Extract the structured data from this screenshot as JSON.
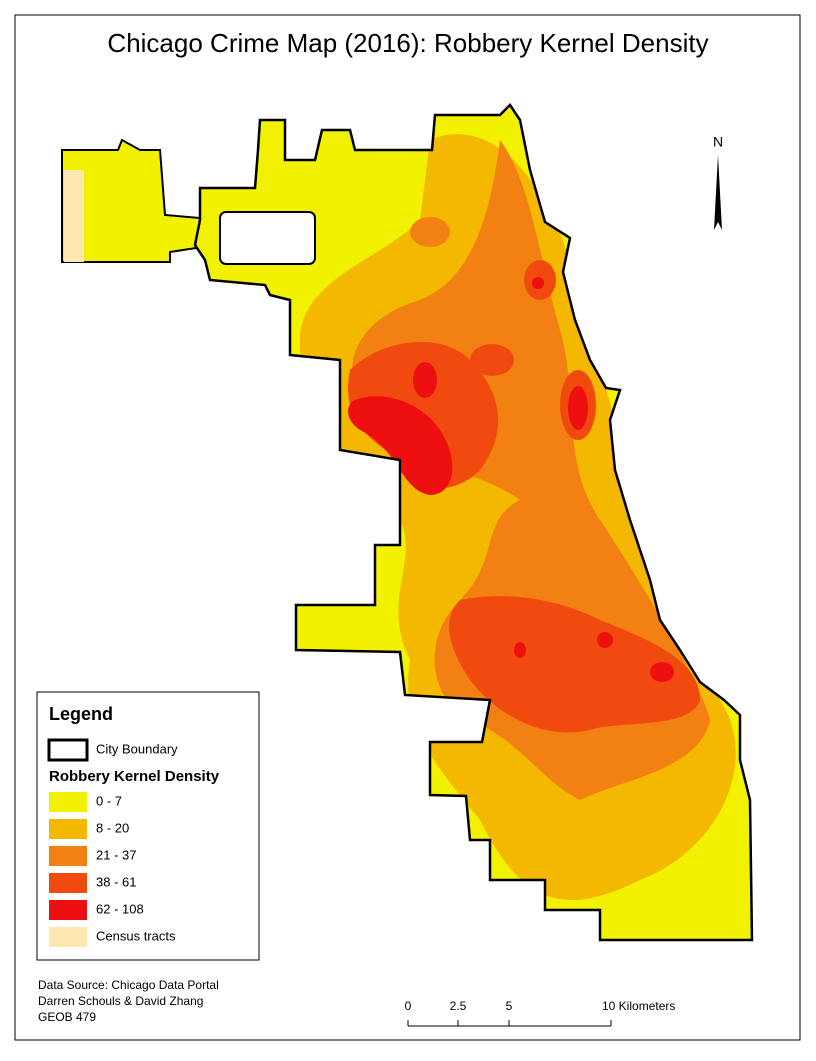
{
  "title": "Chicago Crime Map (2016): Robbery Kernel Density",
  "north": "N",
  "legend": {
    "title": "Legend",
    "boundary": "City Boundary",
    "density_title": "Robbery Kernel Density",
    "classes": [
      {
        "label": "0 - 7",
        "color": "#f2f200"
      },
      {
        "label": "8 - 20",
        "color": "#f5b800"
      },
      {
        "label": "21 - 37",
        "color": "#f38012"
      },
      {
        "label": "38 - 61",
        "color": "#f14a0e"
      },
      {
        "label": "62 - 108",
        "color": "#ee1010"
      }
    ],
    "census": {
      "label": "Census tracts",
      "color": "#fde8b2"
    }
  },
  "scale_bar": {
    "labels": [
      "0",
      "2.5",
      "5",
      "10 Kilometers"
    ]
  },
  "credits": [
    "Data Source: Chicago Data Portal",
    "Darren Schouls & David Zhang",
    "GEOB 479"
  ]
}
